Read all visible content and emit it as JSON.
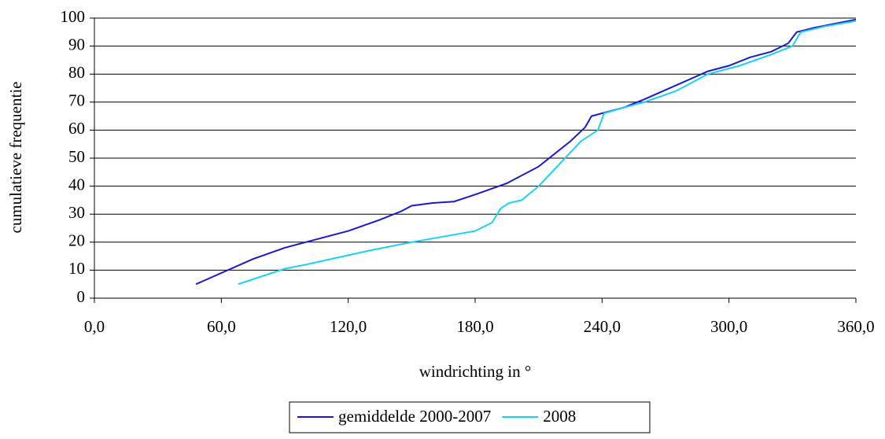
{
  "chart_data": {
    "type": "line",
    "xlabel": "windrichting in °",
    "ylabel": "cumulatieve frequentie",
    "xlim": [
      0,
      360
    ],
    "xticks": [
      {
        "value": 0,
        "label": "0,0"
      },
      {
        "value": 60,
        "label": "60,0"
      },
      {
        "value": 120,
        "label": "120,0"
      },
      {
        "value": 180,
        "label": "180,0"
      },
      {
        "value": 240,
        "label": "240,0"
      },
      {
        "value": 300,
        "label": "300,0"
      },
      {
        "value": 360,
        "label": "360,0"
      }
    ],
    "ylim": [
      0,
      100
    ],
    "yticks": [
      0,
      10,
      20,
      30,
      40,
      50,
      60,
      70,
      80,
      90,
      100
    ],
    "grid": true,
    "legend": "bottom",
    "series": [
      {
        "name": "gemiddelde 2000-2007",
        "color": "#1a1acc",
        "x": [
          48,
          60,
          75,
          90,
          105,
          120,
          135,
          145,
          150,
          160,
          170,
          180,
          195,
          210,
          225,
          232,
          235,
          240,
          250,
          260,
          275,
          290,
          300,
          310,
          320,
          328,
          332,
          340,
          350,
          360
        ],
        "values": [
          5,
          9,
          14,
          18,
          21,
          24,
          28,
          31,
          33,
          34,
          34.5,
          37,
          41,
          47,
          56,
          61,
          65,
          66,
          68,
          71,
          76,
          81,
          83,
          86,
          88,
          91,
          95,
          96.5,
          98,
          99.5
        ]
      },
      {
        "name": "2008",
        "color": "#1ad0f5",
        "x": [
          68,
          80,
          90,
          100,
          115,
          130,
          150,
          165,
          180,
          188,
          192,
          196,
          202,
          210,
          220,
          230,
          238,
          241,
          250,
          260,
          275,
          290,
          305,
          320,
          330,
          334,
          345,
          360
        ],
        "values": [
          5,
          8,
          10.5,
          12,
          14.5,
          17,
          20,
          22,
          24,
          27,
          32,
          34,
          35,
          40,
          48,
          56,
          60,
          66,
          68,
          70,
          74,
          80,
          83,
          87,
          90,
          95,
          97,
          99
        ]
      }
    ]
  }
}
